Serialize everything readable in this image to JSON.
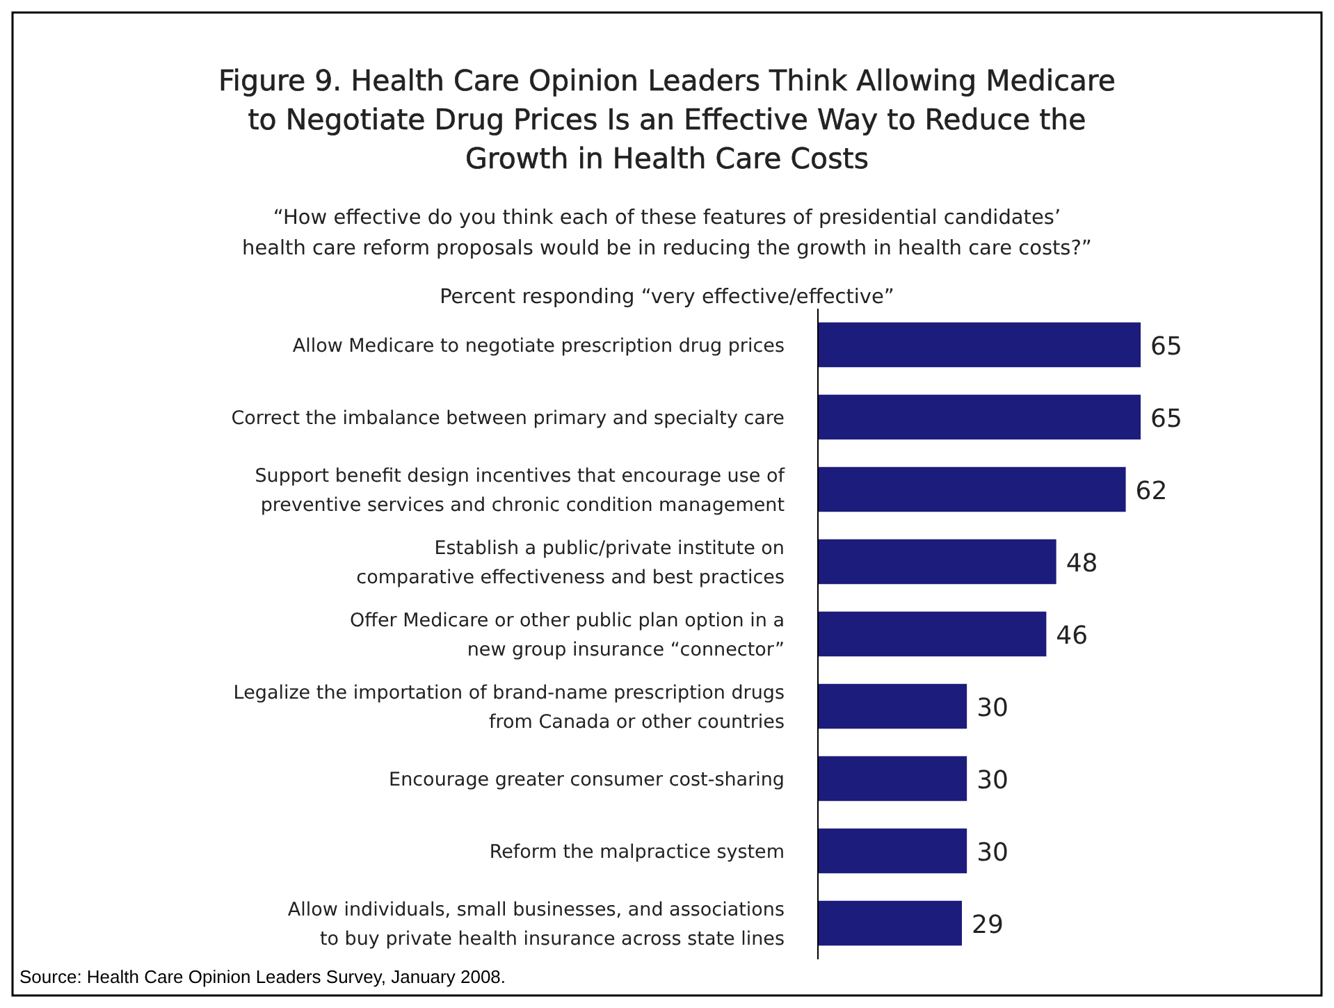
{
  "chart_data": {
    "type": "bar",
    "orientation": "horizontal",
    "title": "Figure 9. Health Care Opinion Leaders Think Allowing Medicare\nto Negotiate Drug Prices Is an Effective Way to Reduce the\nGrowth in Health Care Costs",
    "subtitle": "“How effective do you think each of these features of presidential candidates’\nhealth care reform proposals would be in reducing the growth in health care costs?”",
    "xlabel": "Percent responding “very effective/effective”",
    "categories": [
      "Allow Medicare to negotiate prescription drug prices",
      "Correct the imbalance between primary and specialty care",
      "Support benefit design incentives that encourage use of\npreventive services and chronic condition management",
      "Establish a public/private institute on\ncomparative effectiveness and best practices",
      "Offer Medicare or other public plan option in a\nnew group insurance “connector”",
      "Legalize the importation of brand-name prescription drugs\nfrom Canada or other countries",
      "Encourage greater consumer cost-sharing",
      "Reform the malpractice system",
      "Allow individuals, small businesses, and associations\nto buy private health insurance across state lines"
    ],
    "values": [
      65,
      65,
      62,
      48,
      46,
      30,
      30,
      30,
      29
    ],
    "color": "#1c1c7c",
    "data_labels": true,
    "annotations": [
      "Source: Health Care Opinion Leaders Survey, January 2008."
    ]
  }
}
